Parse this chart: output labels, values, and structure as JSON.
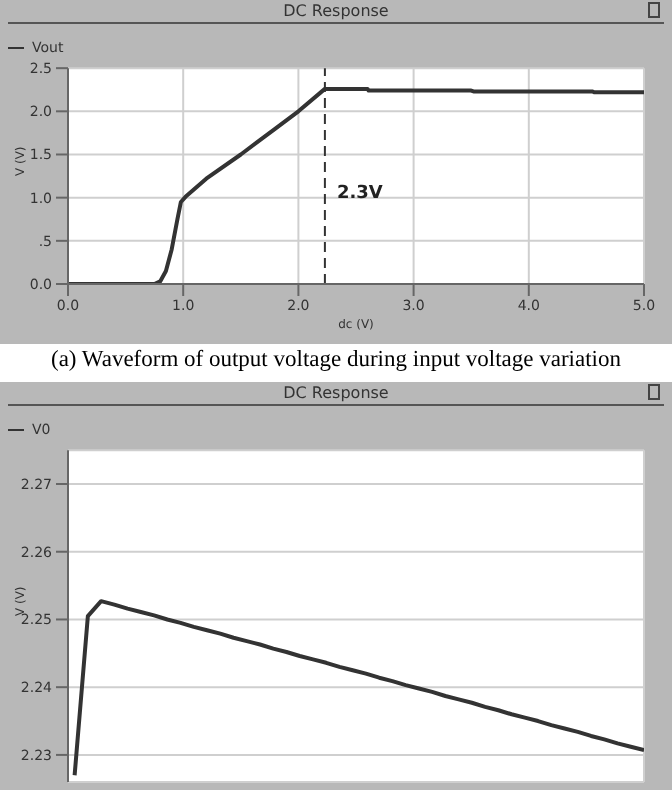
{
  "chart_data": [
    {
      "type": "line",
      "title": "DC Response",
      "xlabel": "dc (V)",
      "ylabel": "V (V)",
      "legend": "top left",
      "grid": true,
      "line_style": "solid",
      "marker": "none",
      "x": [
        0,
        0.4,
        0.75,
        0.8,
        0.85,
        0.9,
        0.95,
        0.98,
        1.02,
        1.2,
        1.5,
        1.8,
        2.0,
        2.23,
        2.6,
        2.61,
        3.5,
        3.52,
        4.55,
        4.57,
        5.0
      ],
      "series": [
        {
          "name": "Vout",
          "color": "#333333",
          "values": [
            0,
            0,
            0,
            0.03,
            0.15,
            0.4,
            0.75,
            0.95,
            1.01,
            1.22,
            1.5,
            1.8,
            2.0,
            2.26,
            2.26,
            2.24,
            2.24,
            2.23,
            2.23,
            2.22,
            2.22
          ]
        }
      ],
      "xlim": [
        0,
        5
      ],
      "xticks": [
        {
          "value": 0,
          "label": "0.0"
        },
        {
          "value": 1,
          "label": "1.0"
        },
        {
          "value": 2,
          "label": "2.0"
        },
        {
          "value": 3,
          "label": "3.0"
        },
        {
          "value": 4,
          "label": "4.0"
        },
        {
          "value": 5,
          "label": "5.0"
        }
      ],
      "ylim": [
        0,
        2.5
      ],
      "yticks": [
        {
          "value": 0,
          "label": "0.0"
        },
        {
          "value": 0.5,
          "label": ".5"
        },
        {
          "value": 1,
          "label": "1.0"
        },
        {
          "value": 1.5,
          "label": "1.5"
        },
        {
          "value": 2,
          "label": "2.0"
        },
        {
          "value": 2.5,
          "label": "2.5"
        }
      ],
      "ref_lines": [
        {
          "axis": "x",
          "value": 2.23,
          "label": "2.3V",
          "line_style": "dashed",
          "color": "#333333"
        }
      ],
      "annotations": [
        "(a) Waveform of output voltage during input voltage variation"
      ]
    },
    {
      "type": "line",
      "title": "DC Response",
      "ylabel": "V (V)",
      "legend": "top left",
      "grid": true,
      "line_style": "solid",
      "marker": "none",
      "tick_labels": "y",
      "categories": [
        null,
        null,
        null,
        null,
        null,
        null,
        null,
        null,
        null,
        null,
        null,
        null,
        null,
        null,
        null,
        null,
        null,
        null,
        null,
        null,
        null,
        null,
        null,
        null,
        null,
        null,
        null,
        null,
        null,
        null,
        null,
        null,
        null,
        null,
        null,
        null,
        null,
        null,
        null,
        null,
        null,
        null,
        null,
        null
      ],
      "series": [
        {
          "name": "V0",
          "color": "#333333",
          "values": [
            2.227,
            2.2505,
            2.2527,
            2.2522,
            2.2516,
            2.2511,
            2.2506,
            2.25,
            2.2495,
            2.2489,
            2.2484,
            2.2479,
            2.2473,
            2.2468,
            2.2463,
            2.2457,
            2.2452,
            2.2446,
            2.2441,
            2.2436,
            2.243,
            2.2425,
            2.242,
            2.2414,
            2.2409,
            2.2403,
            2.2398,
            2.2393,
            2.2387,
            2.2382,
            2.2377,
            2.2371,
            2.2366,
            2.236,
            2.2355,
            2.235,
            2.2344,
            2.2339,
            2.2334,
            2.2328,
            2.2323,
            2.2317,
            2.2312,
            2.2307
          ]
        }
      ],
      "ylim": [
        2.226,
        2.275
      ],
      "yticks": [
        2.23,
        2.24,
        2.25,
        2.26,
        2.27
      ]
    }
  ]
}
